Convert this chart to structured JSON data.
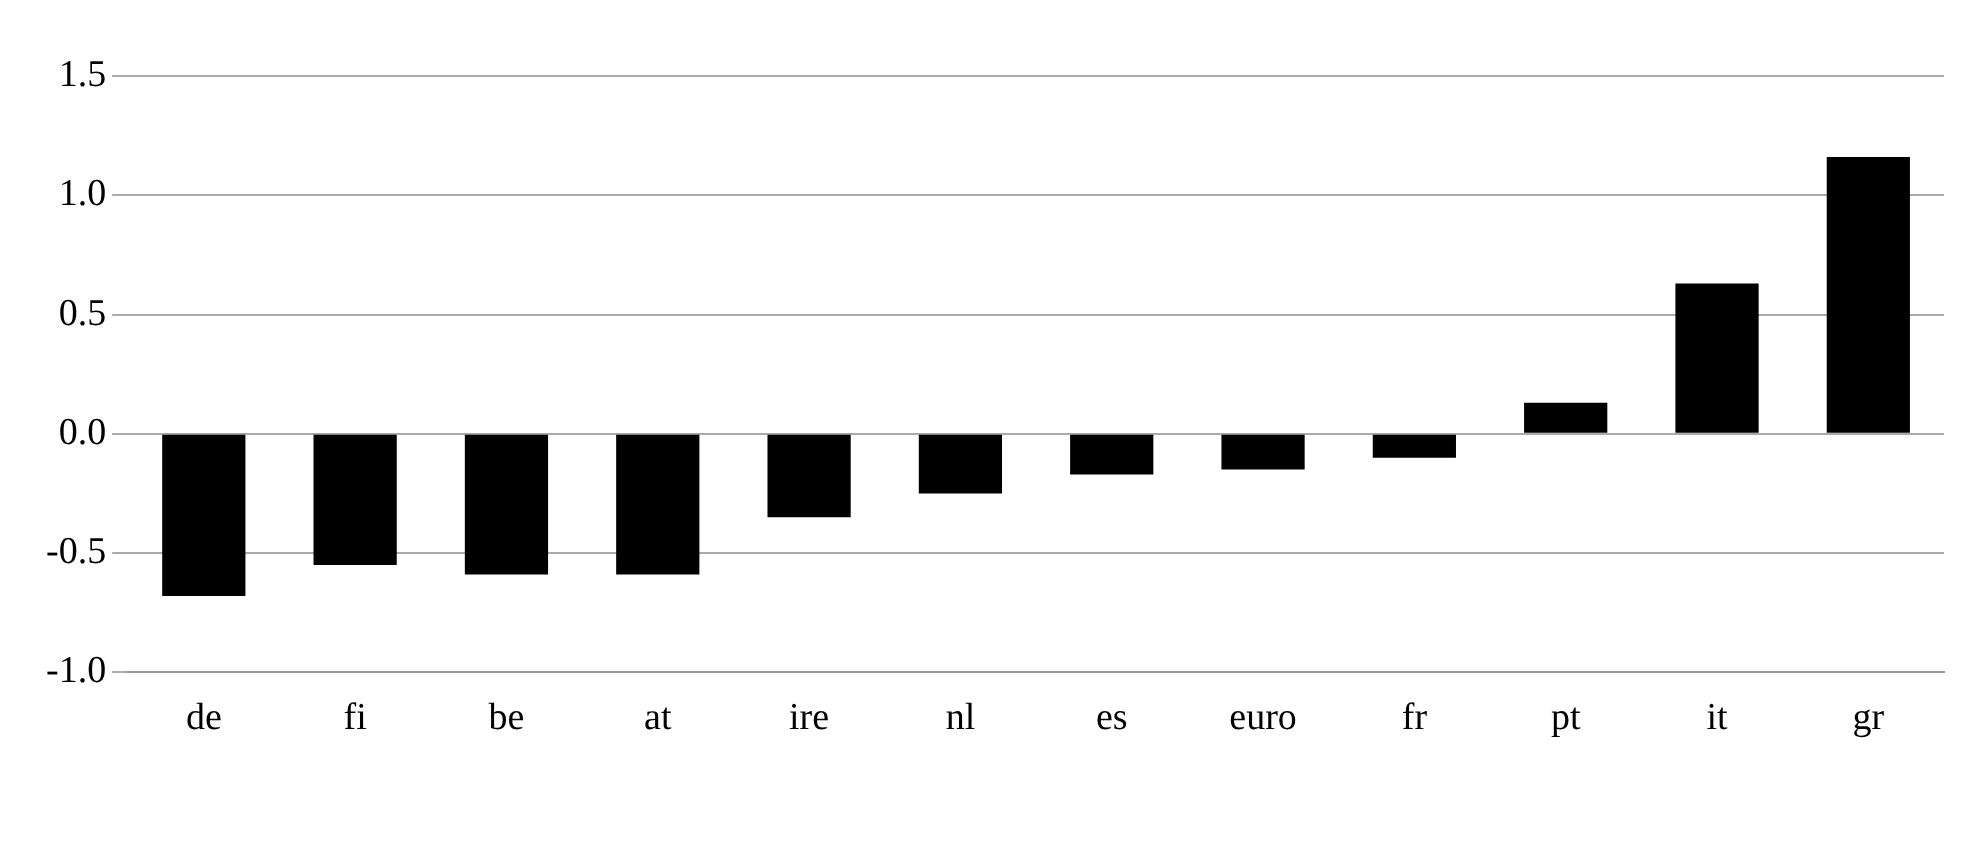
{
  "chart_data": {
    "type": "bar",
    "categories": [
      "de",
      "fi",
      "be",
      "at",
      "ire",
      "nl",
      "es",
      "euro",
      "fr",
      "pt",
      "it",
      "gr"
    ],
    "values": [
      -0.68,
      -0.55,
      -0.59,
      -0.59,
      -0.35,
      -0.25,
      -0.17,
      -0.15,
      -0.1,
      0.13,
      0.63,
      1.16
    ],
    "color": "#000000",
    "ylim": [
      -1.0,
      1.5
    ],
    "yticks": [
      {
        "value": -1,
        "label": "-1.0"
      },
      {
        "value": -0.5,
        "label": "-0.5"
      },
      {
        "value": 0,
        "label": "0.0"
      },
      {
        "value": 0.5,
        "label": "0.5"
      },
      {
        "value": 1,
        "label": "1.0"
      },
      {
        "value": 1.5,
        "label": "1.5"
      }
    ],
    "grid": "y"
  }
}
